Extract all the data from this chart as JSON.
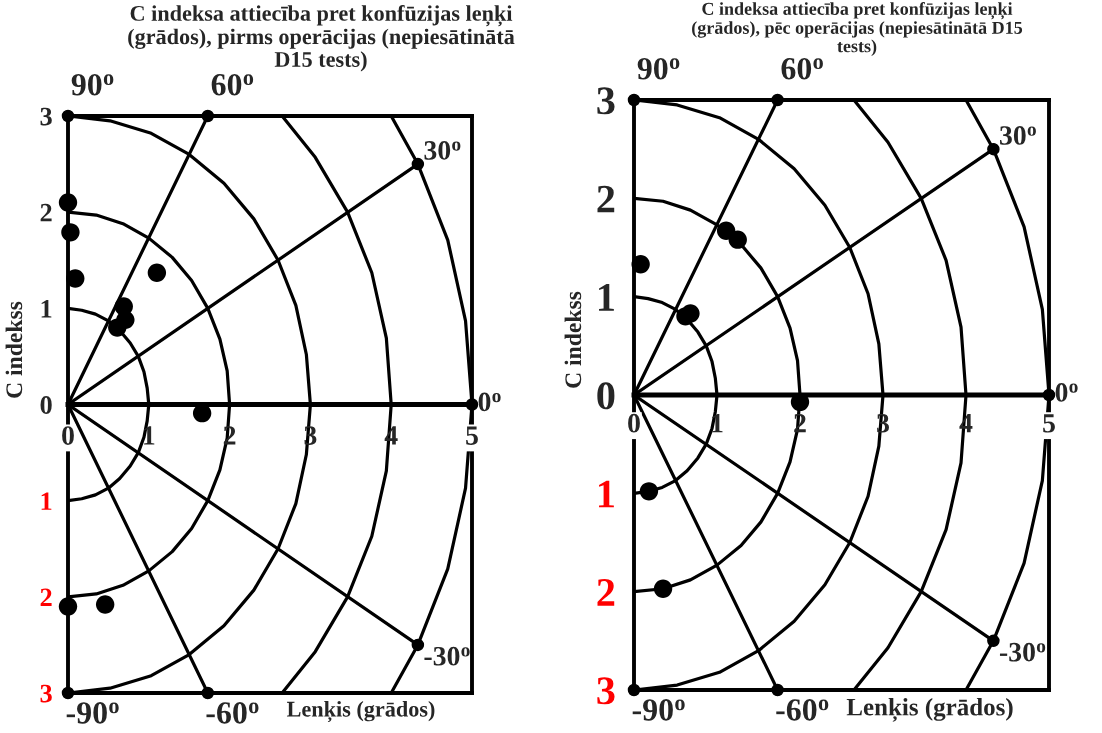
{
  "chart_data": [
    {
      "type": "scatter",
      "title": "C indeksa attiecība pret konfūzijas leņķi\n(grādos), pirms operācijas (nepiesātinātā\nD15 tests)",
      "xlabel": "Lenķis (grādos)",
      "ylabel": "C indekss",
      "xlim": [
        0,
        5
      ],
      "ylim": [
        -3,
        3
      ],
      "xticks": [
        0,
        1,
        2,
        3,
        4,
        5
      ],
      "yticks": [
        {
          "value": -3,
          "label": "3"
        },
        {
          "value": -2,
          "label": "2"
        },
        {
          "value": -1,
          "label": "1"
        },
        0,
        1,
        2,
        3
      ],
      "grid": false,
      "annotations": [
        {
          "text": "90$^{o}$",
          "x": 0,
          "y": 3
        },
        {
          "text": "60$^{o}$",
          "x": 1.73,
          "y": 3
        },
        {
          "text": "30$^{o}$",
          "x": 4.33,
          "y": 2.5
        },
        {
          "text": "0$^{o}$",
          "x": 5,
          "y": 0
        },
        {
          "text": "-30$^{o}$",
          "x": 4.33,
          "y": -2.5
        },
        {
          "text": "-60$^{o}$",
          "x": 1.73,
          "y": -3
        },
        {
          "text": "-90$^{o}$",
          "x": 0,
          "y": -3
        }
      ],
      "series": [
        {
          "type": "line",
          "color": "#000000",
          "x": [
            0,
            0.17,
            0.34,
            0.5,
            0.64,
            0.77,
            0.87,
            0.94,
            0.98,
            1,
            0.98,
            0.94,
            0.87,
            0.77,
            0.64,
            0.5,
            0.34,
            0.17,
            0
          ],
          "values": [
            -1,
            -0.98,
            -0.94,
            -0.87,
            -0.77,
            -0.64,
            -0.5,
            -0.34,
            -0.17,
            0,
            0.17,
            0.34,
            0.5,
            0.64,
            0.77,
            0.87,
            0.94,
            0.98,
            1
          ]
        },
        {
          "type": "line",
          "color": "#000000",
          "x": [
            0,
            0.35,
            0.68,
            1,
            1.29,
            1.53,
            1.73,
            1.88,
            1.97,
            2,
            1.97,
            1.88,
            1.73,
            1.53,
            1.29,
            1,
            0.68,
            0.35,
            0
          ],
          "values": [
            -2,
            -1.97,
            -1.88,
            -1.73,
            -1.53,
            -1.29,
            -1,
            -0.68,
            -0.35,
            0,
            0.35,
            0.68,
            1,
            1.29,
            1.53,
            1.73,
            1.88,
            1.97,
            2
          ]
        },
        {
          "type": "line",
          "color": "#000000",
          "x": [
            0,
            0.52,
            1.03,
            1.5,
            1.93,
            2.3,
            2.6,
            2.82,
            2.95,
            3,
            2.95,
            2.82,
            2.6,
            2.3,
            1.93,
            1.5,
            1.03,
            0.52,
            0
          ],
          "values": [
            -3,
            -2.95,
            -2.82,
            -2.6,
            -2.3,
            -1.93,
            -1.5,
            -1.03,
            -0.52,
            0,
            0.52,
            1.03,
            1.5,
            1.93,
            2.3,
            2.6,
            2.82,
            2.95,
            3
          ]
        },
        {
          "type": "line",
          "color": "#000000",
          "x": [
            2.65,
            3.06,
            3.46,
            3.76,
            3.94,
            4,
            3.94,
            3.76,
            3.46,
            3.06,
            2.65
          ],
          "values": [
            -3,
            -2.57,
            -2,
            -1.37,
            -0.69,
            0,
            0.69,
            1.37,
            2,
            2.57,
            3
          ]
        },
        {
          "type": "line",
          "color": "#000000",
          "x": [
            4,
            4.33,
            4.7,
            4.92,
            5,
            4.92,
            4.7,
            4.33,
            4
          ],
          "values": [
            -3,
            -2.5,
            -1.71,
            -0.87,
            0,
            0.87,
            1.71,
            2.5,
            3
          ]
        },
        {
          "type": "line",
          "color": "#000000",
          "x": [
            0,
            4.33
          ],
          "values": [
            0,
            2.5
          ]
        },
        {
          "type": "line",
          "color": "#000000",
          "x": [
            0,
            1.73
          ],
          "values": [
            0,
            3
          ]
        },
        {
          "type": "line",
          "color": "#000000",
          "x": [
            0,
            4.33
          ],
          "values": [
            0,
            -2.5
          ]
        },
        {
          "type": "line",
          "color": "#000000",
          "x": [
            0,
            1.73
          ],
          "values": [
            0,
            -3
          ]
        },
        {
          "color": "#000000",
          "marker": "circle",
          "x": [
            0,
            0.03,
            0.09,
            1.1,
            0.69,
            0.71,
            0.61,
            1.66,
            0,
            0.46
          ],
          "values": [
            2.1,
            1.79,
            1.31,
            1.37,
            1.02,
            0.88,
            0.8,
            -0.09,
            -2.1,
            -2.08
          ]
        }
      ]
    },
    {
      "type": "scatter",
      "title": "C indeksa attiecība pret konfūzijas leņķi\n(grādos), pēc operācijas (nepiesātinātā D15\ntests)",
      "xlabel": "Lenķis (grādos)",
      "ylabel": "C indekss",
      "xlim": [
        0,
        5
      ],
      "ylim": [
        -3,
        3
      ],
      "xticks": [
        0,
        1,
        2,
        3,
        4,
        5
      ],
      "yticks": [
        {
          "value": -3,
          "label": "3"
        },
        {
          "value": -2,
          "label": "2"
        },
        {
          "value": -1,
          "label": "1"
        },
        0,
        1,
        2,
        3
      ],
      "grid": false,
      "annotations": [
        {
          "text": "90$^{o}$",
          "x": 0,
          "y": 3
        },
        {
          "text": "60$^{o}$",
          "x": 1.73,
          "y": 3
        },
        {
          "text": "30$^{o}$",
          "x": 4.33,
          "y": 2.5
        },
        {
          "text": "0$^{o}$",
          "x": 5,
          "y": 0
        },
        {
          "text": "-30$^{o}$",
          "x": 4.33,
          "y": -2.5
        },
        {
          "text": "-60$^{o}$",
          "x": 1.73,
          "y": -3
        },
        {
          "text": "-90$^{o}$",
          "x": 0,
          "y": -3
        }
      ],
      "series": [
        {
          "type": "line",
          "color": "#000000",
          "x": [
            0,
            0.17,
            0.34,
            0.5,
            0.64,
            0.77,
            0.87,
            0.94,
            0.98,
            1,
            0.98,
            0.94,
            0.87,
            0.77,
            0.64,
            0.5,
            0.34,
            0.17,
            0
          ],
          "values": [
            -1,
            -0.98,
            -0.94,
            -0.87,
            -0.77,
            -0.64,
            -0.5,
            -0.34,
            -0.17,
            0,
            0.17,
            0.34,
            0.5,
            0.64,
            0.77,
            0.87,
            0.94,
            0.98,
            1
          ]
        },
        {
          "type": "line",
          "color": "#000000",
          "x": [
            0,
            0.35,
            0.68,
            1,
            1.29,
            1.53,
            1.73,
            1.88,
            1.97,
            2,
            1.97,
            1.88,
            1.73,
            1.53,
            1.29,
            1,
            0.68,
            0.35,
            0
          ],
          "values": [
            -2,
            -1.97,
            -1.88,
            -1.73,
            -1.53,
            -1.29,
            -1,
            -0.68,
            -0.35,
            0,
            0.35,
            0.68,
            1,
            1.29,
            1.53,
            1.73,
            1.88,
            1.97,
            2
          ]
        },
        {
          "type": "line",
          "color": "#000000",
          "x": [
            0,
            0.52,
            1.03,
            1.5,
            1.93,
            2.3,
            2.6,
            2.82,
            2.95,
            3,
            2.95,
            2.82,
            2.6,
            2.3,
            1.93,
            1.5,
            1.03,
            0.52,
            0
          ],
          "values": [
            -3,
            -2.95,
            -2.82,
            -2.6,
            -2.3,
            -1.93,
            -1.5,
            -1.03,
            -0.52,
            0,
            0.52,
            1.03,
            1.5,
            1.93,
            2.3,
            2.6,
            2.82,
            2.95,
            3
          ]
        },
        {
          "type": "line",
          "color": "#000000",
          "x": [
            2.65,
            3.06,
            3.46,
            3.76,
            3.94,
            4,
            3.94,
            3.76,
            3.46,
            3.06,
            2.65
          ],
          "values": [
            -3,
            -2.57,
            -2,
            -1.37,
            -0.69,
            0,
            0.69,
            1.37,
            2,
            2.57,
            3
          ]
        },
        {
          "type": "line",
          "color": "#000000",
          "x": [
            4,
            4.33,
            4.7,
            4.92,
            5,
            4.92,
            4.7,
            4.33,
            4
          ],
          "values": [
            -3,
            -2.5,
            -1.71,
            -0.87,
            0,
            0.87,
            1.71,
            2.5,
            3
          ]
        },
        {
          "type": "line",
          "color": "#000000",
          "x": [
            0,
            4.33
          ],
          "values": [
            0,
            2.5
          ]
        },
        {
          "type": "line",
          "color": "#000000",
          "x": [
            0,
            1.73
          ],
          "values": [
            0,
            3
          ]
        },
        {
          "type": "line",
          "color": "#000000",
          "x": [
            0,
            4.33
          ],
          "values": [
            0,
            -2.5
          ]
        },
        {
          "type": "line",
          "color": "#000000",
          "x": [
            0,
            1.73
          ],
          "values": [
            0,
            -3
          ]
        },
        {
          "color": "#000000",
          "marker": "circle",
          "x": [
            0.08,
            1.11,
            1.25,
            0.68,
            0.62,
            2.0,
            0.18,
            0.35
          ],
          "values": [
            1.33,
            1.67,
            1.58,
            0.83,
            0.8,
            -0.07,
            -0.98,
            -1.97
          ]
        }
      ]
    }
  ]
}
